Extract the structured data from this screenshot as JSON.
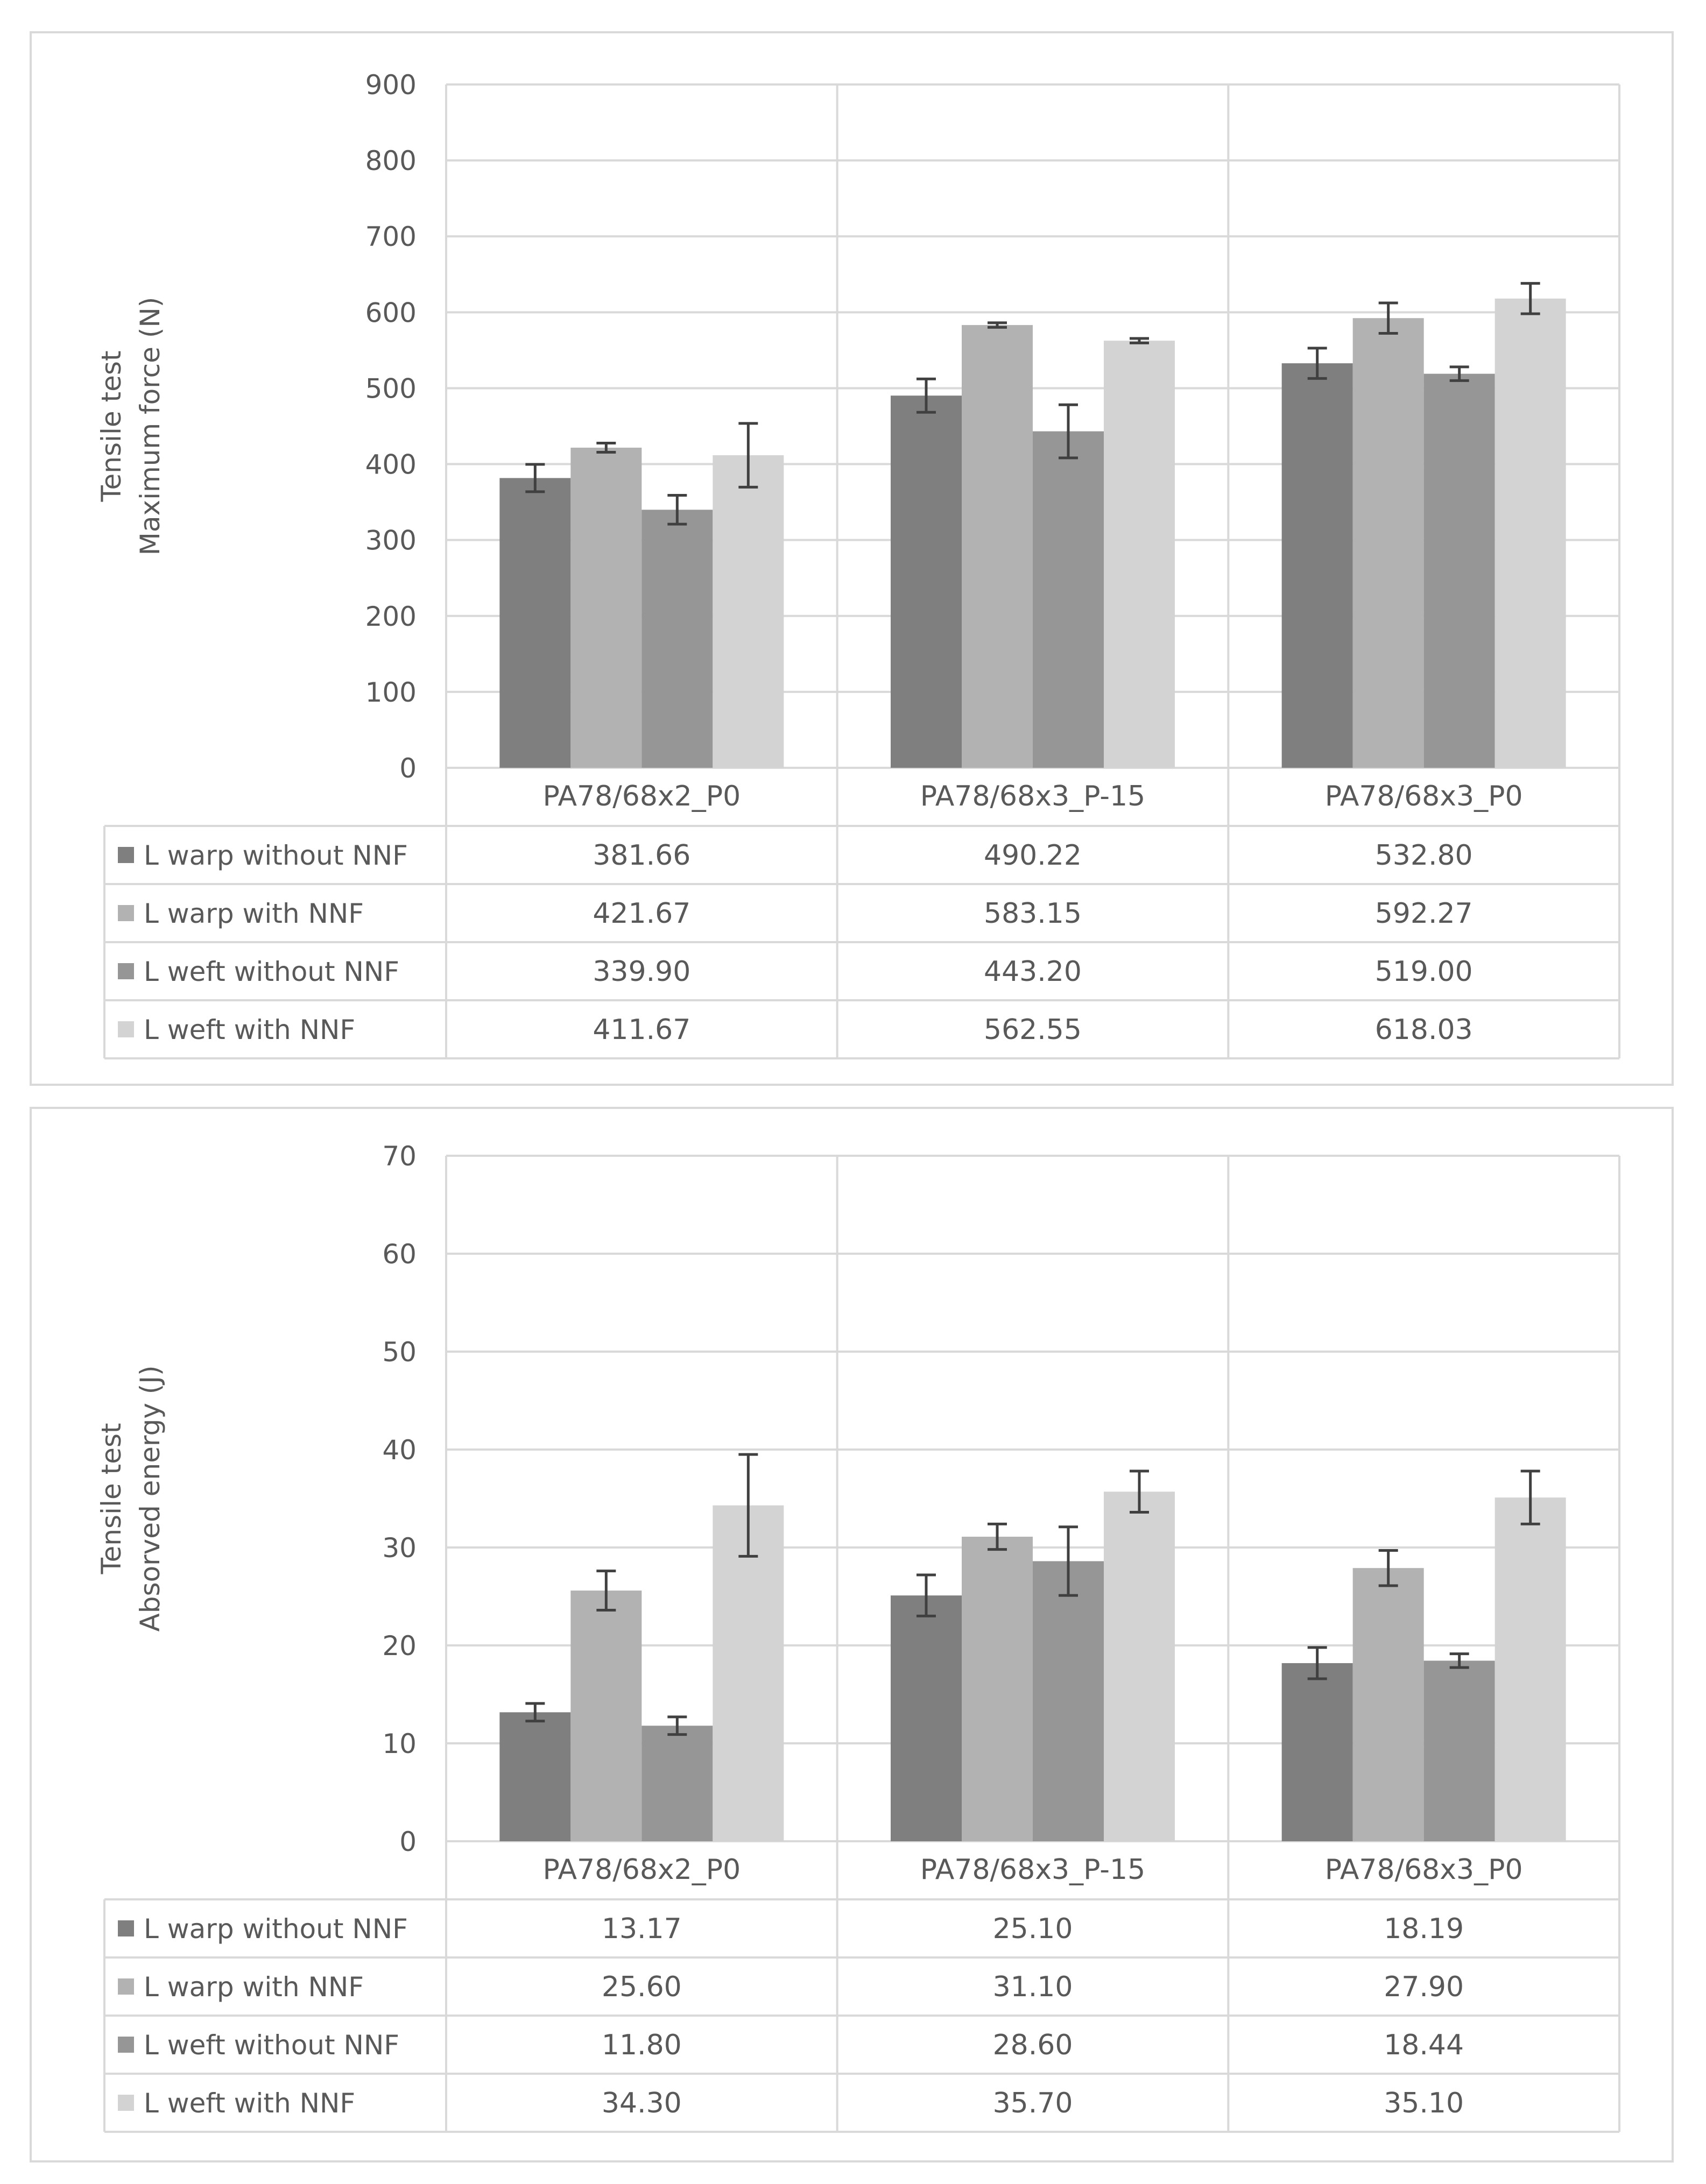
{
  "chart_data": [
    {
      "type": "bar",
      "ylabel_line1": "Tensile test",
      "ylabel_line2": "Maximum force (N)",
      "ylim": [
        0,
        900
      ],
      "ytick_step": 100,
      "ytick_labels": [
        "0",
        "100",
        "200",
        "300",
        "400",
        "500",
        "600",
        "700",
        "800",
        "900"
      ],
      "categories": [
        "PA78/68x2_P0",
        "PA78/68x3_P-15",
        "PA78/68x3_P0"
      ],
      "series": [
        {
          "name": "L warp without NNF",
          "color": "#7f7f7f",
          "values": [
            381.66,
            490.22,
            532.8
          ],
          "labels": [
            "381.66",
            "490.22",
            "532.80"
          ],
          "errors": [
            18,
            22,
            20
          ]
        },
        {
          "name": "L warp with NNF",
          "color": "#b2b2b2",
          "values": [
            421.67,
            583.15,
            592.27
          ],
          "labels": [
            "421.67",
            "583.15",
            "592.27"
          ],
          "errors": [
            6,
            3,
            20
          ]
        },
        {
          "name": "L weft without NNF",
          "color": "#969696",
          "values": [
            339.9,
            443.2,
            519.0
          ],
          "labels": [
            "339.90",
            "443.20",
            "519.00"
          ],
          "errors": [
            19,
            35,
            9
          ]
        },
        {
          "name": "L weft with NNF",
          "color": "#d3d3d3",
          "values": [
            411.67,
            562.55,
            618.03
          ],
          "labels": [
            "411.67",
            "562.55",
            "618.03"
          ],
          "errors": [
            42,
            3,
            20
          ]
        }
      ]
    },
    {
      "type": "bar",
      "ylabel_line1": "Tensile test",
      "ylabel_line2": "Absorved energy (J)",
      "ylim": [
        0,
        70
      ],
      "ytick_step": 10,
      "ytick_labels": [
        "0",
        "10",
        "20",
        "30",
        "40",
        "50",
        "60",
        "70"
      ],
      "categories": [
        "PA78/68x2_P0",
        "PA78/68x3_P-15",
        "PA78/68x3_P0"
      ],
      "series": [
        {
          "name": "L warp without NNF",
          "color": "#7f7f7f",
          "values": [
            13.17,
            25.1,
            18.19
          ],
          "labels": [
            "13.17",
            "25.10",
            "18.19"
          ],
          "errors": [
            0.9,
            2.1,
            1.6
          ]
        },
        {
          "name": "L warp with NNF",
          "color": "#b2b2b2",
          "values": [
            25.6,
            31.1,
            27.9
          ],
          "labels": [
            "25.60",
            "31.10",
            "27.90"
          ],
          "errors": [
            2.0,
            1.3,
            1.8
          ]
        },
        {
          "name": "L weft without NNF",
          "color": "#969696",
          "values": [
            11.8,
            28.6,
            18.44
          ],
          "labels": [
            "11.80",
            "28.60",
            "18.44"
          ],
          "errors": [
            0.9,
            3.5,
            0.7
          ]
        },
        {
          "name": "L weft with NNF",
          "color": "#d3d3d3",
          "values": [
            34.3,
            35.7,
            35.1
          ],
          "labels": [
            "34.30",
            "35.70",
            "35.10"
          ],
          "errors": [
            5.2,
            2.1,
            2.7
          ]
        }
      ]
    }
  ]
}
